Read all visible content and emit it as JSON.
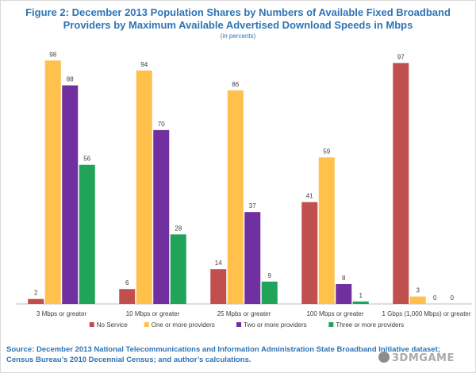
{
  "title_line1": "Figure 2:  December 2013 Population Shares by Numbers of Available Fixed Broadband",
  "title_line2": "Providers by Maximum Available Advertised Download Speeds in Mbps",
  "subtitle": "(in percents)",
  "source_line1": "Source:  December 2013 National Telecommunications and Information Administration State Broadband Initiative dataset;",
  "source_line2": "Census Bureau’s 2010 Decennial Census; and author’s calculations.",
  "watermark": "3DMGAME",
  "chart_data": {
    "type": "bar",
    "categories": [
      "3 Mbps or greater",
      "10 Mbps or greater",
      "25 Mpbs or greater",
      "100 Mbps or greater",
      "1 Gbps (1,000 Mbps) or greater"
    ],
    "series": [
      {
        "name": "No Service",
        "color": "#c0504d",
        "values": [
          2,
          6,
          14,
          41,
          97
        ]
      },
      {
        "name": "One or more providers",
        "color": "#ffc04c",
        "values": [
          98,
          94,
          86,
          59,
          3
        ]
      },
      {
        "name": "Two or more providers",
        "color": "#7030a0",
        "values": [
          88,
          70,
          37,
          8,
          0
        ]
      },
      {
        "name": "Three or more providers",
        "color": "#21a35a",
        "values": [
          56,
          28,
          9,
          1,
          0
        ]
      }
    ],
    "ylim": [
      0,
      100
    ],
    "grid": false,
    "legend_position": "bottom"
  }
}
